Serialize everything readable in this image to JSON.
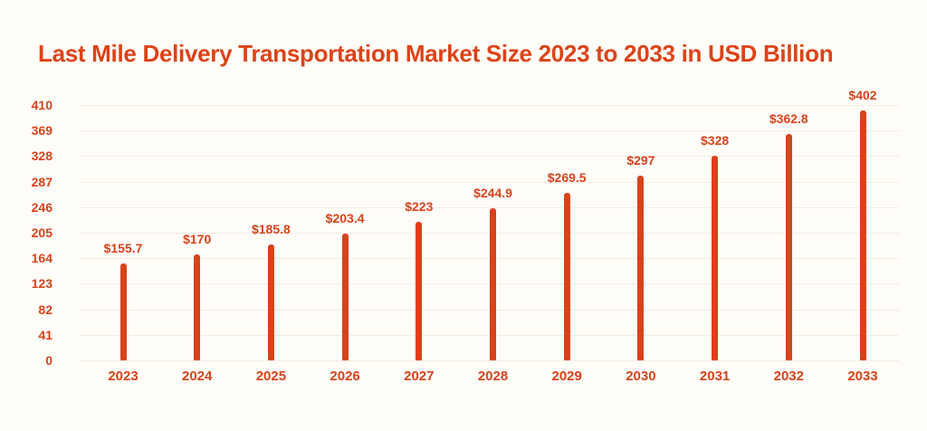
{
  "title": "Last Mile Delivery Transportation Market Size 2023 to 2033 in USD Billion",
  "colors": {
    "background": "#FFFDF8",
    "title": "#DC4318",
    "bar": "#D8421C",
    "tick_label": "#D8421C",
    "value_label": "#D8421C",
    "gridline": "#F7E9E2"
  },
  "chart_data": {
    "type": "bar",
    "title": "Last Mile Delivery Transportation Market Size 2023 to 2033 in USD Billion",
    "categories": [
      "2023",
      "2024",
      "2025",
      "2026",
      "2027",
      "2028",
      "2029",
      "2030",
      "2031",
      "2032",
      "2033"
    ],
    "values": [
      155.7,
      170,
      185.8,
      203.4,
      223,
      244.9,
      269.5,
      297,
      328,
      362.8,
      402
    ],
    "value_labels": [
      "$155.7",
      "$170",
      "$185.8",
      "$203.4",
      "$223",
      "$244.9",
      "$269.5",
      "$297",
      "$328",
      "$362.8",
      "$402"
    ],
    "y_ticks": [
      0,
      41,
      82,
      123,
      164,
      205,
      246,
      287,
      328,
      369,
      410
    ],
    "ylim": [
      0,
      410
    ],
    "xlabel": "",
    "ylabel": "",
    "grid": "horizontal",
    "legend": "none",
    "bar_color": "#D8421C",
    "units": "USD Billion"
  }
}
